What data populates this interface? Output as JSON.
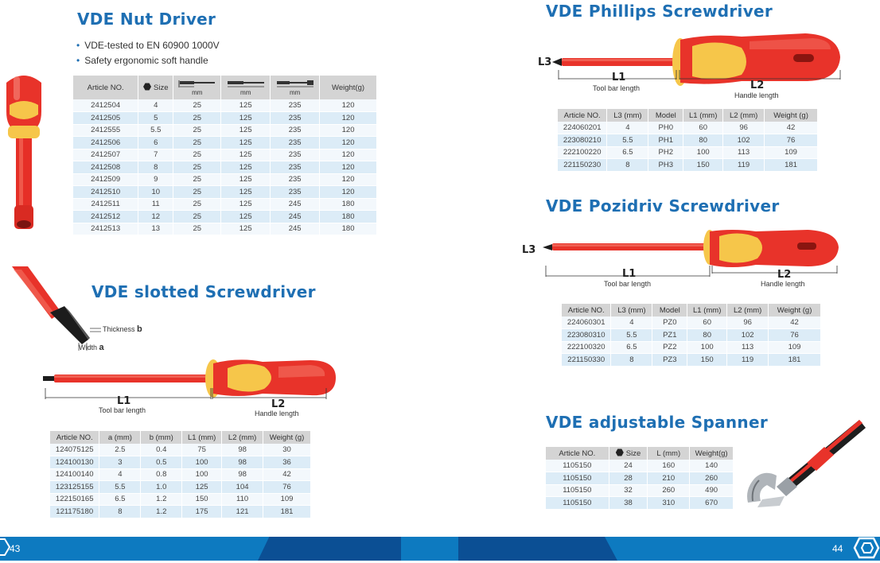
{
  "nut_driver": {
    "title": "VDE Nut Driver",
    "bullets": [
      "VDE-tested to EN 60900 1000V",
      "Safety ergonomic soft handle"
    ],
    "headers": {
      "article": "Article NO.",
      "size": "Size",
      "mm": "mm",
      "weight": "Weight(g)"
    },
    "rows": [
      [
        "2412504",
        "4",
        "25",
        "125",
        "235",
        "120"
      ],
      [
        "2412505",
        "5",
        "25",
        "125",
        "235",
        "120"
      ],
      [
        "2412555",
        "5.5",
        "25",
        "125",
        "235",
        "120"
      ],
      [
        "2412506",
        "6",
        "25",
        "125",
        "235",
        "120"
      ],
      [
        "2412507",
        "7",
        "25",
        "125",
        "235",
        "120"
      ],
      [
        "2412508",
        "8",
        "25",
        "125",
        "235",
        "120"
      ],
      [
        "2412509",
        "9",
        "25",
        "125",
        "235",
        "120"
      ],
      [
        "2412510",
        "10",
        "25",
        "125",
        "235",
        "120"
      ],
      [
        "2412511",
        "11",
        "25",
        "125",
        "245",
        "180"
      ],
      [
        "2412512",
        "12",
        "25",
        "125",
        "245",
        "180"
      ],
      [
        "2412513",
        "13",
        "25",
        "125",
        "245",
        "180"
      ]
    ]
  },
  "slotted": {
    "title": "VDE slotted Screwdriver",
    "thickness": "Thickness",
    "thickness_letter": "b",
    "width": "Width",
    "width_letter": "a",
    "l1": "L1",
    "l1_caption": "Tool bar length",
    "l2": "L2",
    "l2_caption": "Handle length",
    "headers": [
      "Article NO.",
      "a (mm)",
      "b (mm)",
      "L1 (mm)",
      "L2 (mm)",
      "Weight (g)"
    ],
    "rows": [
      [
        "124075125",
        "2.5",
        "0.4",
        "75",
        "98",
        "30"
      ],
      [
        "124100130",
        "3",
        "0.5",
        "100",
        "98",
        "36"
      ],
      [
        "124100140",
        "4",
        "0.8",
        "100",
        "98",
        "42"
      ],
      [
        "123125155",
        "5.5",
        "1.0",
        "125",
        "104",
        "76"
      ],
      [
        "122150165",
        "6.5",
        "1.2",
        "150",
        "110",
        "109"
      ],
      [
        "121175180",
        "8",
        "1.2",
        "175",
        "121",
        "181"
      ]
    ]
  },
  "phillips": {
    "title": "VDE Phillips Screwdriver",
    "l3": "L3",
    "l1": "L1",
    "l1_caption": "Tool bar length",
    "l2": "L2",
    "l2_caption": "Handle length",
    "headers": [
      "Article NO.",
      "L3 (mm)",
      "Model",
      "L1 (mm)",
      "L2 (mm)",
      "Weight (g)"
    ],
    "rows": [
      [
        "224060201",
        "4",
        "PH0",
        "60",
        "96",
        "42"
      ],
      [
        "223080210",
        "5.5",
        "PH1",
        "80",
        "102",
        "76"
      ],
      [
        "222100220",
        "6.5",
        "PH2",
        "100",
        "113",
        "109"
      ],
      [
        "221150230",
        "8",
        "PH3",
        "150",
        "119",
        "181"
      ]
    ]
  },
  "pozidriv": {
    "title": "VDE Pozidriv Screwdriver",
    "l3": "L3",
    "l1": "L1",
    "l1_caption": "Tool bar length",
    "l2": "L2",
    "l2_caption": "Handle length",
    "headers": [
      "Article NO.",
      "L3 (mm)",
      "Model",
      "L1 (mm)",
      "L2 (mm)",
      "Weight (g)"
    ],
    "rows": [
      [
        "224060301",
        "4",
        "PZ0",
        "60",
        "96",
        "42"
      ],
      [
        "223080310",
        "5.5",
        "PZ1",
        "80",
        "102",
        "76"
      ],
      [
        "222100320",
        "6.5",
        "PZ2",
        "100",
        "113",
        "109"
      ],
      [
        "221150330",
        "8",
        "PZ3",
        "150",
        "119",
        "181"
      ]
    ]
  },
  "spanner": {
    "title": "VDE adjustable Spanner",
    "headers": {
      "article": "Article NO.",
      "size": "Size",
      "length": "L (mm)",
      "weight": "Weight(g)"
    },
    "rows": [
      [
        "1105150",
        "24",
        "160",
        "140"
      ],
      [
        "1105150",
        "28",
        "210",
        "260"
      ],
      [
        "1105150",
        "32",
        "260",
        "490"
      ],
      [
        "1105150",
        "38",
        "310",
        "670"
      ]
    ]
  },
  "footer": {
    "left_page": "43",
    "right_page": "44"
  },
  "colors": {
    "title_blue": "#1e6fb3",
    "footer_blue": "#0d7ac0",
    "handle_red": "#e8332a",
    "handle_yellow": "#f6c64a"
  }
}
